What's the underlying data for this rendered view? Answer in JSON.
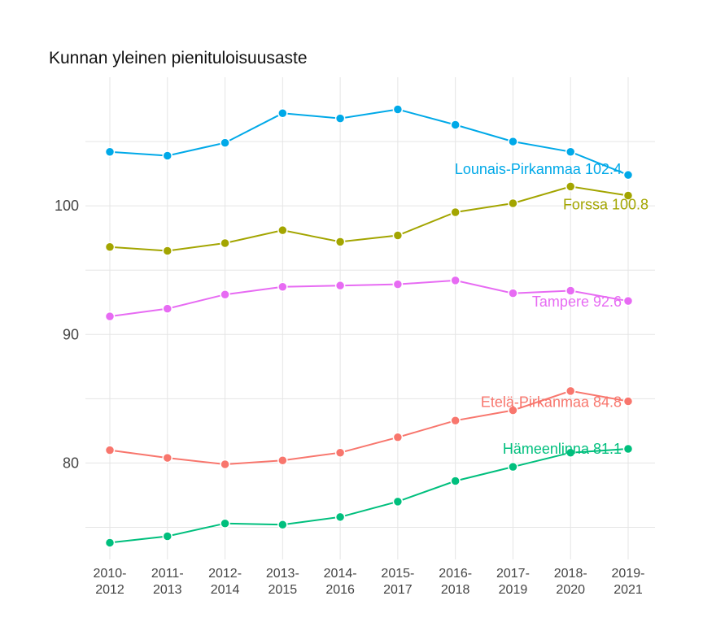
{
  "chart_data": {
    "type": "line",
    "title": "Kunnan yleinen pienituloisuusaste",
    "xlabel": "",
    "ylabel": "",
    "categories": [
      "2010-2012",
      "2011-2013",
      "2012-2014",
      "2013-2015",
      "2014-2016",
      "2015-2017",
      "2016-2018",
      "2017-2019",
      "2018-2020",
      "2019-2021"
    ],
    "x_tick_lines": [
      [
        "2010-",
        "2012"
      ],
      [
        "2011-",
        "2013"
      ],
      [
        "2012-",
        "2014"
      ],
      [
        "2013-",
        "2015"
      ],
      [
        "2014-",
        "2016"
      ],
      [
        "2015-",
        "2017"
      ],
      [
        "2016-",
        "2018"
      ],
      [
        "2017-",
        "2019"
      ],
      [
        "2018-",
        "2020"
      ],
      [
        "2019-",
        "2021"
      ]
    ],
    "ylim": [
      72.5,
      110
    ],
    "yticks": [
      80,
      90,
      100
    ],
    "y_minor_grid": [
      75,
      85,
      95,
      105
    ],
    "grid": true,
    "legend": "none",
    "series": [
      {
        "name": "Lounais-Pirkanmaa",
        "label": "Lounais-Pirkanmaa 102.4",
        "color": "#00a9e8",
        "values": [
          104.2,
          103.9,
          104.9,
          107.2,
          106.8,
          107.5,
          106.3,
          105.0,
          104.2,
          102.4
        ]
      },
      {
        "name": "Forssa",
        "label": "Forssa 100.8",
        "color": "#a3a500",
        "values": [
          96.8,
          96.5,
          97.1,
          98.1,
          97.2,
          97.7,
          99.5,
          100.2,
          101.5,
          100.8
        ]
      },
      {
        "name": "Tampere",
        "label": "Tampere 92.6",
        "color": "#e76bf3",
        "values": [
          91.4,
          92.0,
          93.1,
          93.7,
          93.8,
          93.9,
          94.2,
          93.2,
          93.4,
          92.6
        ]
      },
      {
        "name": "Etelä-Pirkanmaa",
        "label": "Etelä-Pirkanmaa 84.8",
        "color": "#f8766d",
        "values": [
          81.0,
          80.4,
          79.9,
          80.2,
          80.8,
          82.0,
          83.3,
          84.1,
          85.6,
          84.8
        ]
      },
      {
        "name": "Hämeenlinna",
        "label": "Hämeenlinna 81.1",
        "color": "#00bf7d",
        "values": [
          73.8,
          74.3,
          75.3,
          75.2,
          75.8,
          77.0,
          78.6,
          79.7,
          80.8,
          81.1
        ]
      }
    ]
  }
}
